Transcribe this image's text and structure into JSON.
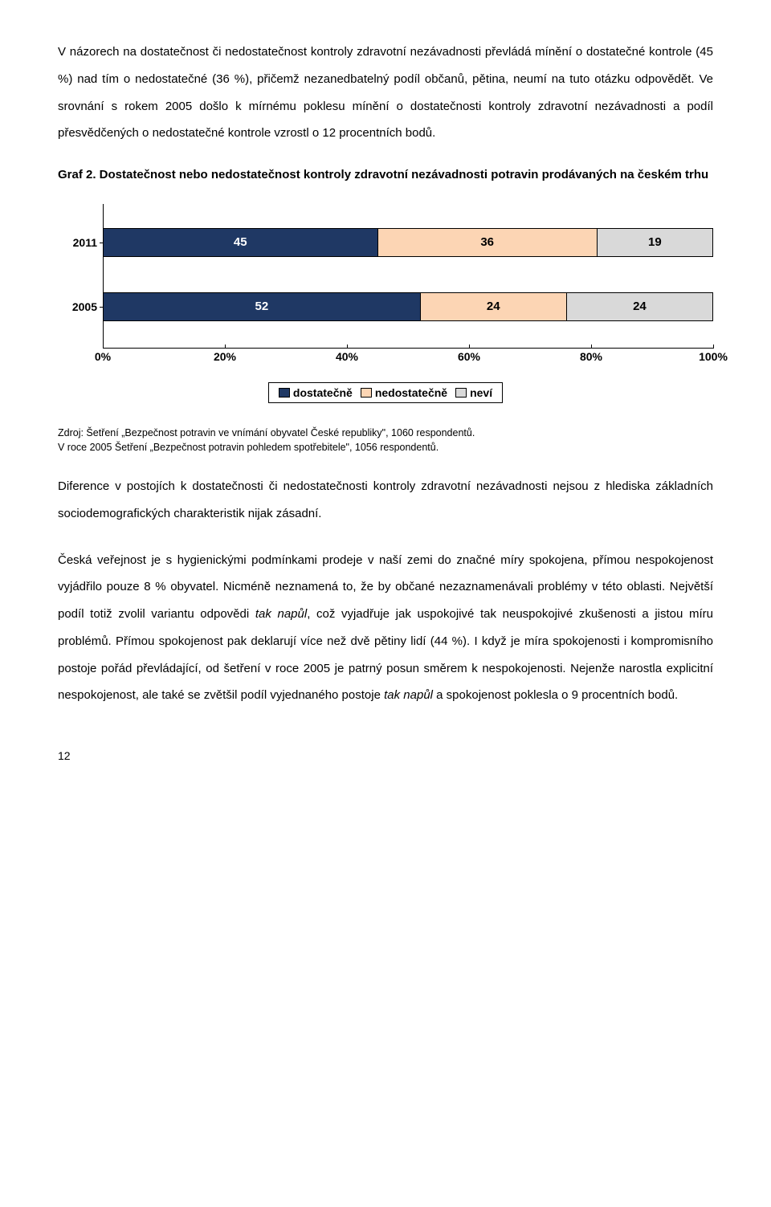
{
  "paragraph1": "V názorech na dostatečnost či nedostatečnost kontroly zdravotní nezávadnosti převládá mínění o dostatečné kontrole (45 %) nad tím o nedostatečné (36 %), přičemž nezanedbatelný podíl občanů, pětina, neumí na tuto otázku odpovědět. Ve srovnání s rokem 2005 došlo k mírnému poklesu mínění o dostatečnosti kontroly zdravotní nezávadnosti a podíl přesvědčených o nedostatečné kontrole vzrostl o 12 procentních bodů.",
  "chart": {
    "title": "Graf 2. Dostatečnost nebo nedostatečnost kontroly zdravotní nezávadnosti potravin prodávaných na českém trhu",
    "type": "stacked-bar-horizontal",
    "ycats": [
      "2011",
      "2005"
    ],
    "series": [
      {
        "label": "dostatečně",
        "color": "#1f3864",
        "text": "#ffffff"
      },
      {
        "label": "nedostatečně",
        "color": "#fcd5b4",
        "text": "#000000"
      },
      {
        "label": "neví",
        "color": "#d9d9d9",
        "text": "#000000"
      }
    ],
    "data": {
      "2011": [
        45,
        36,
        19
      ],
      "2005": [
        52,
        24,
        24
      ]
    },
    "xticks": [
      0,
      20,
      40,
      60,
      80,
      100
    ],
    "xtick_labels": [
      "0%",
      "20%",
      "40%",
      "60%",
      "80%",
      "100%"
    ],
    "background": "#ffffff",
    "border_color": "#000000"
  },
  "source_line1": "Zdroj: Šetření „Bezpečnost potravin ve vnímání obyvatel České republiky\", 1060 respondentů.",
  "source_line2": "V roce 2005 Šetření „Bezpečnost potravin pohledem spotřebitele\", 1056 respondentů.",
  "paragraph2": "Diference v postojích k dostatečnosti či nedostatečnosti kontroly zdravotní nezávadnosti nejsou z hlediska základních sociodemografických charakteristik nijak zásadní.",
  "paragraph3_html": "Česká veřejnost je s hygienickými podmínkami prodeje v naší zemi do značné míry spokojena, přímou nespokojenost vyjádřilo pouze 8 % obyvatel. Nicméně neznamená to, že by občané nezaznamenávali problémy v této oblasti. Největší podíl totiž zvolil variantu odpovědi <i>tak napůl</i>, což vyjadřuje jak uspokojivé tak neuspokojivé zkušenosti a jistou míru problémů. Přímou spokojenost pak deklarují více než dvě pětiny lidí (44 %). I když je míra spokojenosti i kompromisního postoje pořád převládající, od šetření v roce 2005 je patrný posun směrem k nespokojenosti. Nejenže narostla explicitní nespokojenost, ale také se zvětšil podíl vyjednaného postoje <i>tak napůl</i> a spokojenost poklesla o 9 procentních bodů.",
  "page_number": "12"
}
